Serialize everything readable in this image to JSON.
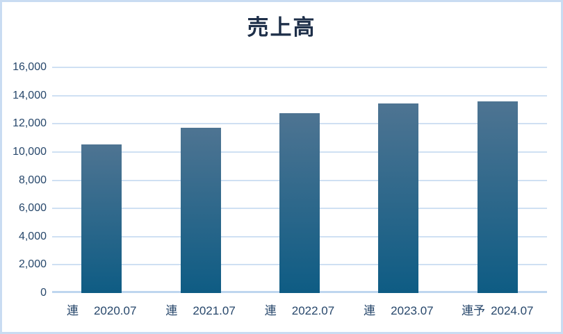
{
  "chart_data": {
    "type": "bar",
    "title": "売上高",
    "categories": [
      {
        "prefix": "連",
        "period": "2020.07"
      },
      {
        "prefix": "連",
        "period": "2021.07"
      },
      {
        "prefix": "連",
        "period": "2022.07"
      },
      {
        "prefix": "連",
        "period": "2023.07"
      },
      {
        "prefix": "連予",
        "period": "2024.07"
      }
    ],
    "values": [
      10550,
      11700,
      12750,
      13450,
      13600
    ],
    "xlabel": "",
    "ylabel": "",
    "ylim": [
      0,
      16000
    ],
    "ytick_step": 2000,
    "yticks": [
      {
        "label": "0",
        "value": 0
      },
      {
        "label": "2,000",
        "value": 2000
      },
      {
        "label": "4,000",
        "value": 4000
      },
      {
        "label": "6,000",
        "value": 6000
      },
      {
        "label": "8,000",
        "value": 8000
      },
      {
        "label": "10,000",
        "value": 10000
      },
      {
        "label": "12,000",
        "value": 12000
      },
      {
        "label": "14,000",
        "value": 14000
      },
      {
        "label": "16,000",
        "value": 16000
      }
    ],
    "grid": true,
    "legend_position": "none",
    "colors": {
      "background": "#FFFFFF",
      "border": "#C9DCF2",
      "gridline": "#CFE0F3",
      "zero_line": "#BED6EF",
      "bar_gradient_top": "#4E7492",
      "bar_gradient_bottom": "#0E5C84",
      "axis_text": "#27476B",
      "title_text": "#1E2F49"
    }
  }
}
